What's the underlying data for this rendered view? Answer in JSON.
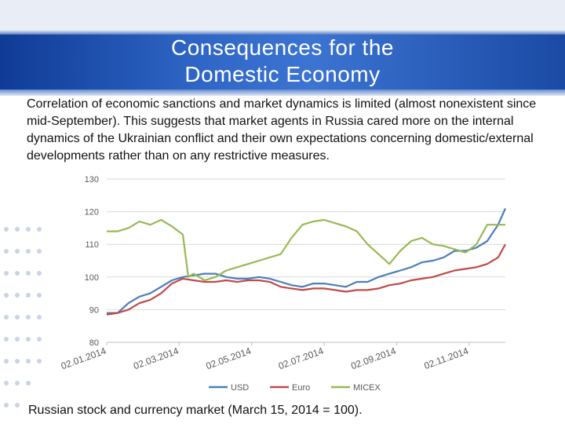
{
  "slide": {
    "title_line1": "Consequences for the",
    "title_line2": "Domestic Economy",
    "body": "Correlation of economic sanctions and market dynamics is limited (almost nonexistent since mid-September). This suggests that market agents in Russia cared more on the internal dynamics of the Ukrainian conflict and their own expectations concerning domestic/external developments rather than on any restrictive measures.",
    "caption": "Russian stock and currency market (March 15, 2014 = 100)."
  },
  "colors": {
    "usd": "#4a7ebb",
    "euro": "#be4b48",
    "micex": "#98b954",
    "grid": "#d9d9d9",
    "axis_text": "#595959"
  },
  "chart_data": {
    "type": "line",
    "title": "",
    "xlabel": "",
    "ylabel": "",
    "ylim": [
      80,
      130
    ],
    "yticks": [
      80,
      90,
      100,
      110,
      120,
      130
    ],
    "x_tick_labels": [
      "02.01.2014",
      "02.03.2014",
      "02.05.2014",
      "02.07.2014",
      "02.09.2014",
      "02.11.2014"
    ],
    "x_tick_positions_months": [
      0,
      2,
      4,
      6,
      8,
      10
    ],
    "x_range_months": [
      0,
      11
    ],
    "legend": [
      "USD",
      "Euro",
      "MICEX"
    ],
    "legend_position": "bottom",
    "series": [
      {
        "name": "USD",
        "x": [
          0,
          0.3,
          0.6,
          0.9,
          1.2,
          1.5,
          1.8,
          2.1,
          2.4,
          2.7,
          3.0,
          3.3,
          3.6,
          3.9,
          4.2,
          4.5,
          4.8,
          5.1,
          5.4,
          5.7,
          6.0,
          6.3,
          6.6,
          6.9,
          7.2,
          7.5,
          7.8,
          8.1,
          8.4,
          8.7,
          9.0,
          9.3,
          9.6,
          9.9,
          10.2,
          10.5,
          10.8,
          11.0
        ],
        "values": [
          89,
          89,
          92,
          94,
          95,
          97,
          99,
          100,
          100.5,
          101,
          101,
          100,
          99.5,
          99.5,
          100,
          99.5,
          98.5,
          97.5,
          97,
          98,
          98,
          97.5,
          97,
          98.5,
          98.5,
          100,
          101,
          102,
          103,
          104.5,
          105,
          106,
          108,
          108,
          109,
          111,
          116,
          121
        ]
      },
      {
        "name": "Euro",
        "x": [
          0,
          0.3,
          0.6,
          0.9,
          1.2,
          1.5,
          1.8,
          2.1,
          2.4,
          2.7,
          3.0,
          3.3,
          3.6,
          3.9,
          4.2,
          4.5,
          4.8,
          5.1,
          5.4,
          5.7,
          6.0,
          6.3,
          6.6,
          6.9,
          7.2,
          7.5,
          7.8,
          8.1,
          8.4,
          8.7,
          9.0,
          9.3,
          9.6,
          9.9,
          10.2,
          10.5,
          10.8,
          11.0
        ],
        "values": [
          88.5,
          89,
          90,
          92,
          93,
          95,
          98,
          99.5,
          99,
          98.5,
          98.5,
          99,
          98.5,
          99,
          99,
          98.5,
          97,
          96.5,
          96,
          96.5,
          96.5,
          96,
          95.5,
          96,
          96,
          96.5,
          97.5,
          98,
          99,
          99.5,
          100,
          101,
          102,
          102.5,
          103,
          104,
          106,
          110
        ]
      },
      {
        "name": "MICEX",
        "x": [
          0,
          0.3,
          0.6,
          0.9,
          1.2,
          1.5,
          1.8,
          2.1,
          2.25,
          2.4,
          2.7,
          3.0,
          3.3,
          3.6,
          3.9,
          4.2,
          4.5,
          4.8,
          5.1,
          5.4,
          5.7,
          6.0,
          6.3,
          6.6,
          6.9,
          7.2,
          7.5,
          7.8,
          8.1,
          8.4,
          8.7,
          9.0,
          9.3,
          9.6,
          9.9,
          10.2,
          10.5,
          10.8,
          11.0
        ],
        "values": [
          114,
          114,
          115,
          117,
          116,
          117.5,
          115.5,
          113,
          100,
          101,
          99,
          100,
          102,
          103,
          104,
          105,
          106,
          107,
          112,
          116,
          117,
          117.5,
          116.5,
          115.5,
          114,
          110,
          107,
          104,
          108,
          111,
          112,
          110,
          109.5,
          108.5,
          107.5,
          110,
          116,
          116,
          116
        ]
      }
    ]
  }
}
